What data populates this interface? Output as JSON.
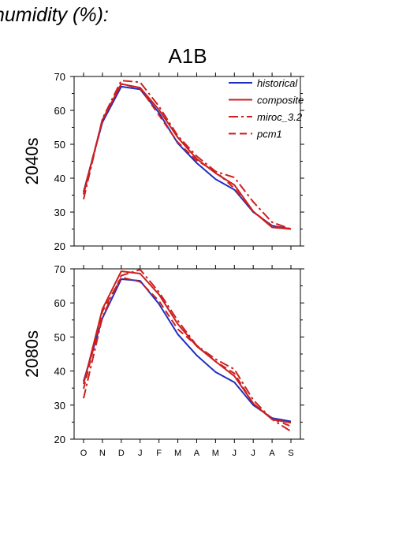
{
  "page": {
    "heading": "humidity (%):",
    "scenario": "A1B"
  },
  "chart_data": {
    "type": "line",
    "categories": [
      "O",
      "N",
      "D",
      "J",
      "F",
      "M",
      "A",
      "M",
      "J",
      "J",
      "A",
      "S"
    ],
    "ylim": [
      20,
      70
    ],
    "yticks": [
      20,
      30,
      40,
      50,
      60,
      70
    ],
    "grid": false,
    "legend_position": "top-right",
    "colors": {
      "historical": "#1f2fbf",
      "composite": "#cc1f1f",
      "miroc_3.2": "#cc1f1f",
      "pcm1": "#cc1f1f",
      "axis": "#000000"
    },
    "legend": [
      "historical",
      "composite",
      "miroc_3.2",
      "pcm1"
    ],
    "panels": [
      {
        "label": "2040s",
        "series": [
          {
            "name": "historical",
            "style": "solid",
            "values": [
              36,
              56.5,
              67,
              66.2,
              59.3,
              50.3,
              44.5,
              39.7,
              36.6,
              30,
              26,
              25
            ]
          },
          {
            "name": "composite",
            "style": "solid",
            "values": [
              35.2,
              57.2,
              67.8,
              66.7,
              60.2,
              52,
              45.7,
              41.5,
              38,
              30.2,
              25.5,
              25
            ]
          },
          {
            "name": "miroc_3.2",
            "style": "dashdot",
            "values": [
              33.8,
              57.5,
              68.8,
              68.3,
              61.2,
              52.5,
              46.5,
              42,
              40.2,
              33,
              27,
              25
            ]
          },
          {
            "name": "pcm1",
            "style": "dashed",
            "values": [
              35.8,
              57,
              67.8,
              66.5,
              58.6,
              50.6,
              45.2,
              42,
              37,
              30.2,
              25.8,
              25
            ]
          }
        ]
      },
      {
        "label": "2080s",
        "series": [
          {
            "name": "historical",
            "style": "solid",
            "values": [
              37,
              55.5,
              67,
              66.5,
              59.7,
              50.8,
              44.6,
              39.7,
              36.7,
              30,
              26.2,
              25.2
            ]
          },
          {
            "name": "composite",
            "style": "solid",
            "values": [
              36.2,
              58.2,
              69.3,
              68.6,
              62.5,
              53.8,
              47.3,
              42.8,
              38.5,
              30.5,
              25.8,
              24.8
            ]
          },
          {
            "name": "miroc_3.2",
            "style": "dashdot",
            "values": [
              32,
              55.8,
              68,
              69.8,
              63.2,
              54.8,
              47.5,
              43.5,
              40.5,
              31.5,
              25.8,
              22.3
            ]
          },
          {
            "name": "pcm1",
            "style": "dashed",
            "values": [
              34.8,
              57.5,
              67.5,
              66.2,
              60.6,
              52.3,
              47.5,
              42.8,
              39.3,
              30.4,
              26,
              23.8
            ]
          }
        ]
      }
    ]
  }
}
